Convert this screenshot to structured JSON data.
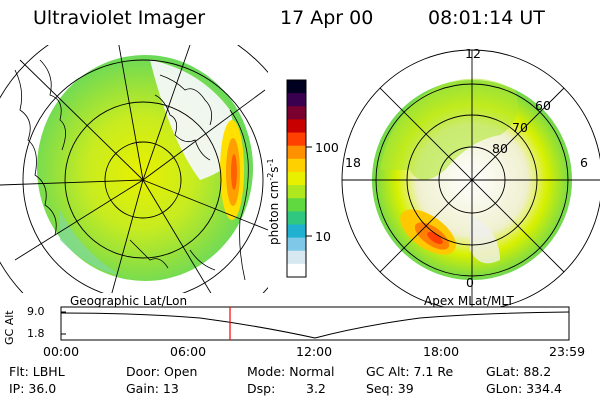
{
  "header": {
    "title": "Ultraviolet Imager",
    "date": "17 Apr 00",
    "time": "08:01:14 UT"
  },
  "left_panel": {
    "label": "Geographic Lat/Lon"
  },
  "right_panel": {
    "label": "Apex  MLat/MLT",
    "mlt_labels": {
      "top": "12",
      "left": "18",
      "right": "6",
      "bottom": "0"
    },
    "lat_labels": [
      "60",
      "70",
      "80"
    ]
  },
  "colorbar": {
    "unit_label": "photon cm",
    "unit_exp1": "-2",
    "unit_mid": "s",
    "unit_exp2": "-1",
    "ticks": [
      "100",
      "10"
    ],
    "colors": [
      "#000020",
      "#3a0050",
      "#7a0030",
      "#c80000",
      "#ff4000",
      "#ff9000",
      "#ffd000",
      "#e8f000",
      "#b0e820",
      "#60d840",
      "#30c880",
      "#20b0d0",
      "#80c8e8",
      "#d8e8f0",
      "#ffffff"
    ]
  },
  "timeline": {
    "y_label": "GC Alt",
    "y_ticks": [
      "9.0",
      "1.8"
    ],
    "x_ticks": [
      "00:00",
      "06:00",
      "12:00",
      "18:00",
      "23:59"
    ],
    "cursor_color": "#ff0000"
  },
  "status": {
    "filter": "Flt: LBHL",
    "door": "Door: Open",
    "mode": "Mode: Normal",
    "gc_alt": "GC Alt: 7.1 Re",
    "glat": "GLat: 88.2",
    "ip": "IP: 36.0",
    "gain": "Gain: 13",
    "dsp_label": "Dsp:",
    "dsp_value": "3.2",
    "seq": "Seq: 39",
    "glon": "GLon: 334.4"
  }
}
